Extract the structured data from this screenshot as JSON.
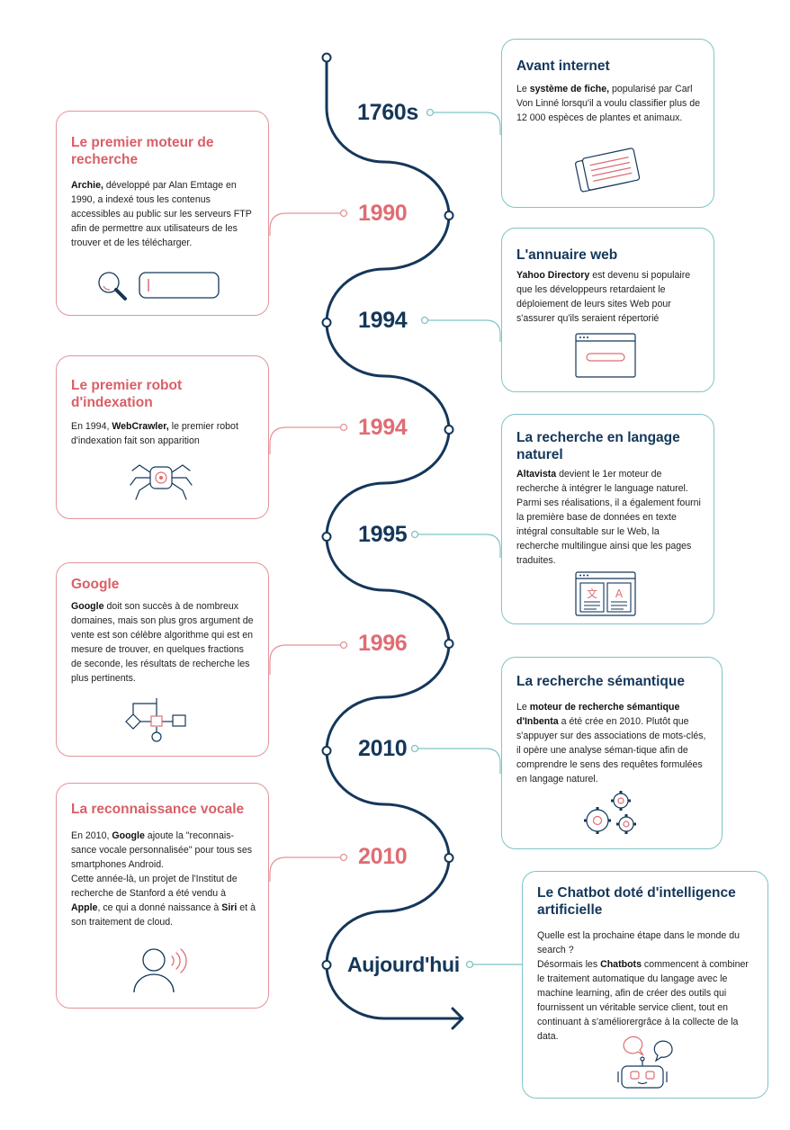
{
  "timeline": {
    "years": [
      "1760s",
      "1990",
      "1994",
      "1994",
      "1995",
      "1996",
      "2010",
      "2010",
      "Aujourd'hui"
    ]
  },
  "cards": {
    "avant_internet": {
      "title": "Avant internet",
      "t1": "Le ",
      "b1": "système de fiche,",
      "t2": " popularisé par Carl Von Linné lorsqu'il a voulu classifier plus de 12 000 espèces de plantes et animaux."
    },
    "premier_moteur": {
      "title": "Le premier moteur de recherche",
      "b1": "Archie,",
      "t1": " développé par Alan Emtage en 1990, a indexé tous les contenus accessibles au public sur les serveurs FTP afin de permettre aux utilisateurs de les trouver et de les télécharger."
    },
    "annuaire_web": {
      "title": "L'annuaire web",
      "b1": "Yahoo Directory",
      "t1": " est devenu si populaire que les développeurs retardaient le déploiement de leurs sites Web pour s'assurer qu'ils seraient répertorié"
    },
    "premier_robot": {
      "title": "Le premier robot d'indexation",
      "t1": "En 1994, ",
      "b1": "WebCrawler,",
      "t2": " le premier robot d'indexation fait son apparition"
    },
    "langage_naturel": {
      "title": "La recherche en langage naturel",
      "b1": "Altavista",
      "t1": " devient le 1er moteur de recherche à intégrer le language naturel. Parmi ses réalisations, il a également fourni la première base de données en texte intégral consultable sur le Web, la recherche multilingue ainsi que les pages traduites."
    },
    "google": {
      "title": "Google",
      "b1": "Google",
      "t1": " doit son succès à de nombreux domaines, mais son plus gros argument de vente est son célèbre algorithme qui est en mesure de trouver, en quelques fractions de seconde, les résultats de recherche les plus pertinents."
    },
    "semantique": {
      "title": "La recherche sémantique",
      "t1": "Le ",
      "b1": "moteur de recherche sémantique d'Inbenta",
      "t2": " a été crée en 2010. Plutôt que s'appuyer sur des associations de mots-clés, il opère une analyse séman-tique afin de comprendre le sens des requêtes formulées en langage naturel."
    },
    "vocale": {
      "title": "La reconnaissance vocale",
      "t1": "En 2010, ",
      "b1": "Google",
      "t2": " ajoute la \"reconnais-sance vocale personnalisée\" pour tous ses smartphones Android.",
      "t3": "Cette année-là, un projet de l'Institut de recherche de Stanford a été vendu à ",
      "b2": "Apple",
      "t4": ", ce qui a donné naissance à ",
      "b3": "Siri",
      "t5": " et à son traitement de cloud."
    },
    "chatbot": {
      "title": "Le Chatbot doté d'intelligence artificielle",
      "t1": "Quelle est la prochaine étape dans le monde du search ?",
      "t2": "Désormais les ",
      "b1": "Chatbots",
      "t3": " commencent à combiner le traitement automatique du langage avec le machine learning, afin de créer des outils qui fournissent un véritable service client, tout en continuant à s'améliorergrâce à la collecte de la data."
    }
  },
  "icons": [
    "index-cards-icon",
    "search-bar-icon",
    "browser-window-icon",
    "spider-robot-icon",
    "translation-icon",
    "flowchart-icon",
    "gears-icon",
    "voice-user-icon",
    "chatbot-robot-icon"
  ],
  "colors": {
    "navy": "#14375a",
    "red": "#df6d74",
    "teal": "#7fc3c8"
  }
}
